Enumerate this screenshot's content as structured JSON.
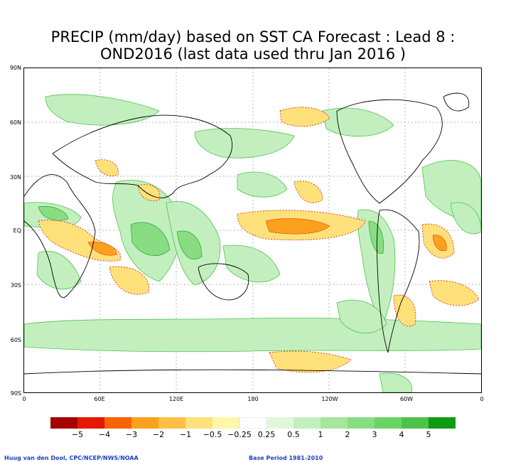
{
  "title": {
    "line1": "PRECIP (mm/day) based on SST CA Forecast : Lead 8 :",
    "line2": "OND2016 (last data used thru Jan 2016 )"
  },
  "lat_labels": [
    "90N",
    "60N",
    "30N",
    "EQ",
    "30S",
    "60S",
    "90S"
  ],
  "lon_labels": [
    "0",
    "60E",
    "120E",
    "180",
    "120W",
    "60W",
    "0"
  ],
  "colorbar": {
    "labels": [
      "−5",
      "−4",
      "−3",
      "−2",
      "−1",
      "−0.5",
      "−0.25",
      "0.25",
      "0.5",
      "1",
      "2",
      "3",
      "4",
      "5"
    ],
    "colors": [
      "#a50000",
      "#e31a00",
      "#f86400",
      "#fba11e",
      "#fdc044",
      "#fee17a",
      "#fff7a8",
      "#ffffff",
      "#e0f8d8",
      "#c3efbf",
      "#a5e69e",
      "#88dd82",
      "#6ad465",
      "#4cc24a",
      "#0e9a13"
    ]
  },
  "credits": {
    "left": "Huug van den Dool, CPC/NCEP/NWS/NOAA",
    "right": "Base Period 1981-2010"
  }
}
